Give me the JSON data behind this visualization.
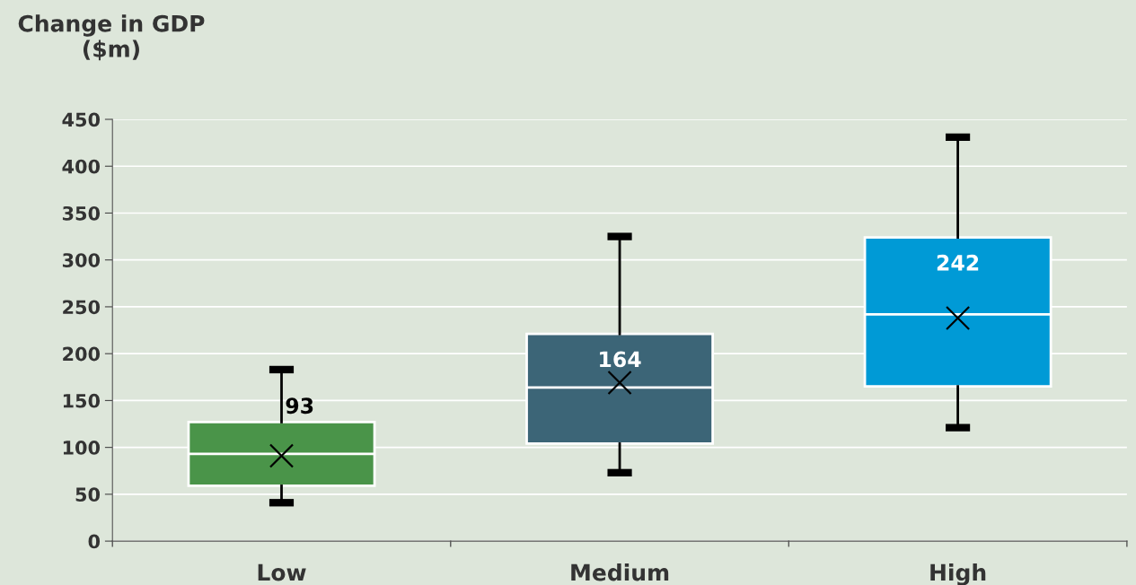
{
  "chart_data": {
    "type": "box",
    "ylabel": "Change in GDP\n($m)",
    "categories": [
      "Low",
      "Medium",
      "High"
    ],
    "boxes": [
      {
        "low": 41,
        "q1": 59,
        "median": 93,
        "q3": 127,
        "high": 183,
        "mean": 91
      },
      {
        "low": 73,
        "q1": 104,
        "median": 164,
        "q3": 221,
        "high": 325,
        "mean": 169
      },
      {
        "low": 121,
        "q1": 165,
        "median": 242,
        "q3": 324,
        "high": 431,
        "mean": 238
      }
    ],
    "colors": [
      "#4a9449",
      "#3c6577",
      "#009ad6"
    ],
    "value_labels": [
      "93",
      "164",
      "242"
    ],
    "ylim": [
      0,
      450
    ],
    "yticks": [
      0,
      50,
      100,
      150,
      200,
      250,
      300,
      350,
      400,
      450
    ],
    "grid": "y",
    "marker": "cross"
  }
}
